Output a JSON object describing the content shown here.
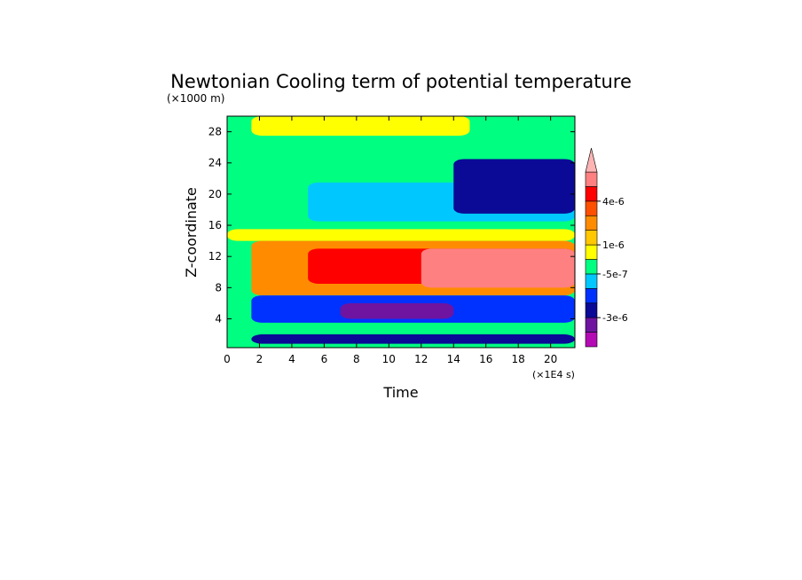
{
  "chart_data": {
    "type": "heatmap",
    "title": "Newtonian Cooling term of potential temperature",
    "xlabel": "Time",
    "ylabel": "Z-coordinate",
    "x_unit": "(×1E4 s)",
    "y_unit": "(×1000 m)",
    "xlim": [
      0,
      21.5
    ],
    "ylim": [
      0.3,
      30
    ],
    "x_ticks": [
      0,
      2,
      4,
      6,
      8,
      10,
      12,
      14,
      16,
      18,
      20
    ],
    "y_ticks": [
      4,
      8,
      12,
      16,
      20,
      24,
      28
    ],
    "colorbar": {
      "colors": [
        "#b40ab4",
        "#6e14a0",
        "#0a0a96",
        "#0032ff",
        "#00c8ff",
        "#00ff80",
        "#ffff00",
        "#ffc800",
        "#ff8c00",
        "#ff5000",
        "#ff0000",
        "#ff8080",
        "#ffb4b4"
      ],
      "labels": [
        {
          "text": "4e-6",
          "index": 10
        },
        {
          "text": "1e-6",
          "index": 7
        },
        {
          "text": "-5e-7",
          "index": 5
        },
        {
          "text": "-3e-6",
          "index": 2
        }
      ]
    },
    "regions": [
      {
        "name": "lower-stable-green",
        "level": 5,
        "x": [
          0,
          21.5
        ],
        "y": [
          0.3,
          30
        ]
      },
      {
        "name": "upper-cyan-layer",
        "level": 4,
        "x": [
          5,
          21.5
        ],
        "y": [
          16.5,
          21.5
        ]
      },
      {
        "name": "upper-deep-blue-layer",
        "level": 2,
        "x": [
          14,
          21.5
        ],
        "y": [
          17.5,
          24.5
        ]
      },
      {
        "name": "top-yellow-band",
        "level": 6,
        "x": [
          1.5,
          15
        ],
        "y": [
          27.5,
          30
        ]
      },
      {
        "name": "mid-yellow-band",
        "level": 6,
        "x": [
          0,
          21.5
        ],
        "y": [
          14,
          15.5
        ]
      },
      {
        "name": "mid-orange-layer",
        "level": 8,
        "x": [
          1.5,
          21.5
        ],
        "y": [
          7,
          14
        ]
      },
      {
        "name": "mid-red-core",
        "level": 10,
        "x": [
          5,
          21.5
        ],
        "y": [
          8.5,
          13
        ]
      },
      {
        "name": "mid-pink-core",
        "level": 11,
        "x": [
          12,
          21.5
        ],
        "y": [
          8,
          13
        ]
      },
      {
        "name": "low-blue-layer",
        "level": 3,
        "x": [
          1.5,
          21.5
        ],
        "y": [
          3.5,
          7
        ]
      },
      {
        "name": "low-deep-blue-layer",
        "level": 2,
        "x": [
          1.5,
          21.5
        ],
        "y": [
          0.8,
          2
        ]
      },
      {
        "name": "low-purple-core",
        "level": 1,
        "x": [
          7,
          14
        ],
        "y": [
          4,
          6
        ]
      }
    ]
  }
}
